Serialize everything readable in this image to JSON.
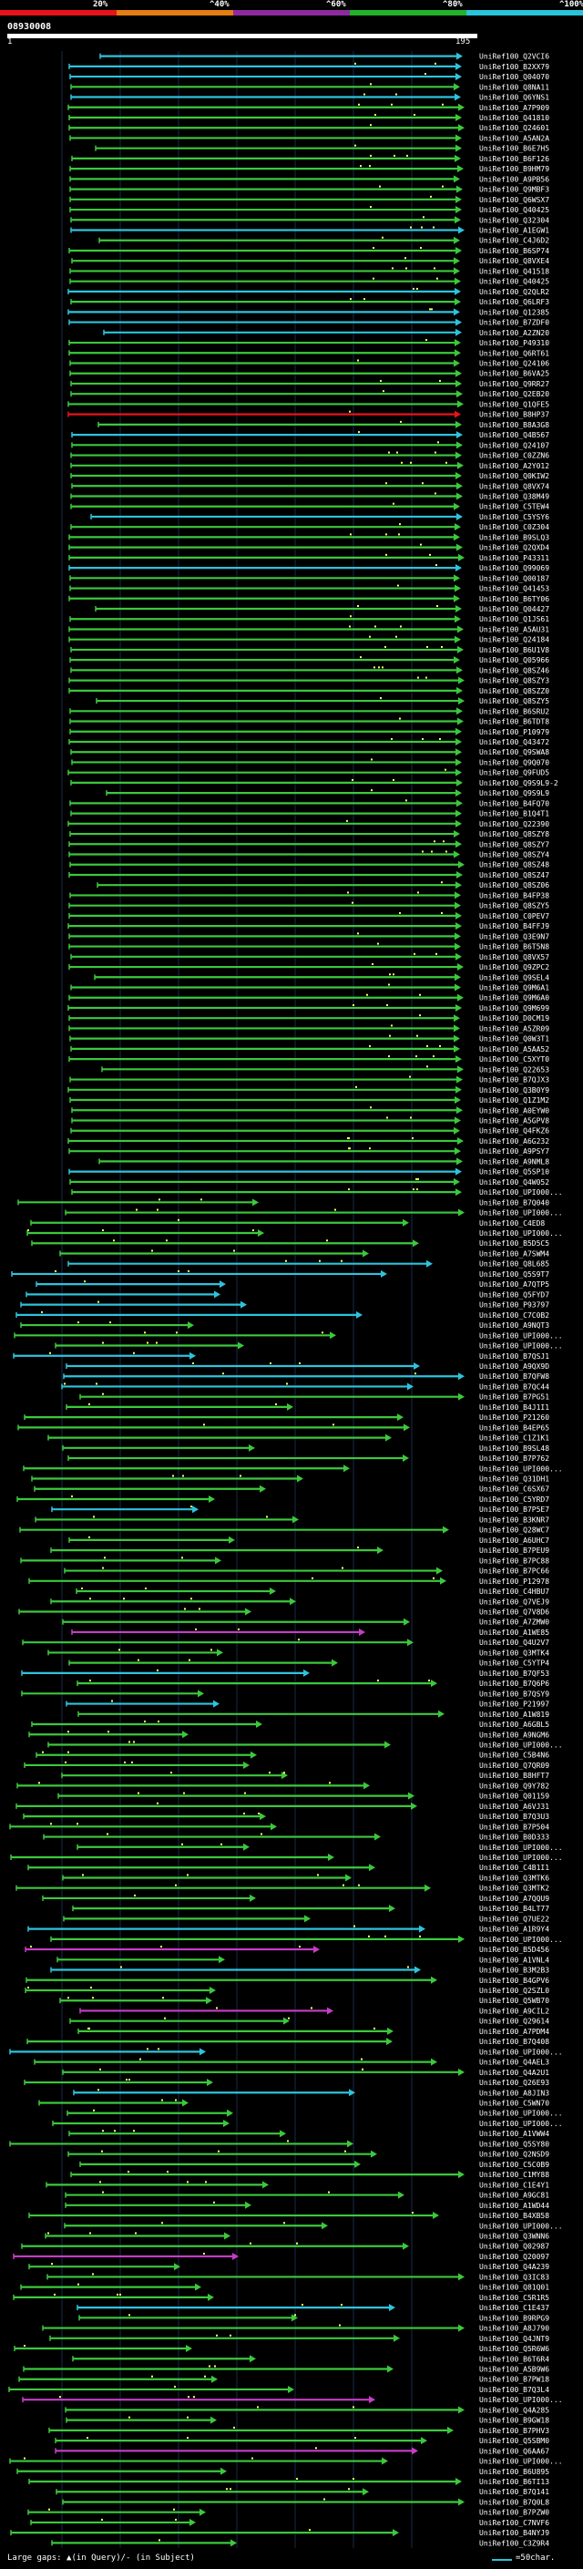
{
  "legend": {
    "labels": [
      "20%",
      "^40%",
      "^60%",
      "^80%",
      "^100%"
    ],
    "colors": [
      "#e8131b",
      "#e67d13",
      "#8e2aa0",
      "#23b02a",
      "#29c4d9"
    ]
  },
  "query": {
    "id": "08930008",
    "start": "1",
    "end": "195"
  },
  "colors": {
    "green": "#3cc83c",
    "cyan": "#2ec3dc",
    "magenta": "#c83cc8",
    "red": "#e8131b",
    "blue": "#3a5cff",
    "white": "#ffffff",
    "dot": "#ffff66"
  },
  "hits": [
    {
      "label": "UniRef100_Q2VCI6",
      "color": "cyan"
    },
    {
      "label": "UniRef100_B2XX79",
      "color": "cyan"
    },
    {
      "label": "UniRef100_Q04070",
      "color": "cyan"
    },
    {
      "label": "UniRef100_Q8NA11",
      "color": "green"
    },
    {
      "label": "UniRef100_Q6YNS1",
      "color": "cyan"
    },
    {
      "label": "UniRef100_A7P909",
      "color": "green"
    },
    {
      "label": "UniRef100_Q41810",
      "color": "green"
    },
    {
      "label": "UniRef100_Q24601",
      "color": "green"
    },
    {
      "label": "UniRef100_A5AN2A",
      "color": "green"
    },
    {
      "label": "UniRef100_B6E7H5",
      "color": "green"
    },
    {
      "label": "UniRef100_B6F126",
      "color": "green"
    },
    {
      "label": "UniRef100_B9HM79",
      "color": "green"
    },
    {
      "label": "UniRef100_A9PB56",
      "color": "green"
    },
    {
      "label": "UniRef100_Q9MBF3",
      "color": "green"
    },
    {
      "label": "UniRef100_Q6WSX7",
      "color": "green"
    },
    {
      "label": "UniRef100_Q40425",
      "color": "green"
    },
    {
      "label": "UniRef100_Q32304",
      "color": "green"
    },
    {
      "label": "UniRef100_A1EGW1",
      "color": "cyan"
    },
    {
      "label": "UniRef100_C4J6D2",
      "color": "green"
    },
    {
      "label": "UniRef100_B6SP74",
      "color": "green"
    },
    {
      "label": "UniRef100_Q8VXE4",
      "color": "green"
    },
    {
      "label": "UniRef100_Q41518",
      "color": "green"
    },
    {
      "label": "UniRef100_Q40425",
      "color": "green"
    },
    {
      "label": "UniRef100_Q2QLR2",
      "color": "cyan"
    },
    {
      "label": "UniRef100_Q6LRF3",
      "color": "green"
    },
    {
      "label": "UniRef100_Q12385",
      "color": "cyan"
    },
    {
      "label": "UniRef100_B7ZDF0",
      "color": "cyan"
    },
    {
      "label": "UniRef100_A2ZN20",
      "color": "cyan"
    },
    {
      "label": "UniRef100_P49310",
      "color": "green"
    },
    {
      "label": "UniRef100_Q6RT61",
      "color": "green"
    },
    {
      "label": "UniRef100_Q24106",
      "color": "green"
    },
    {
      "label": "UniRef100_B6VA25",
      "color": "green"
    },
    {
      "label": "UniRef100_Q9RR27",
      "color": "green"
    },
    {
      "label": "UniRef100_Q2EB20",
      "color": "green"
    },
    {
      "label": "UniRef100_Q1QFE5",
      "color": "green"
    },
    {
      "label": "UniRef100_B8HP37",
      "color": "red"
    },
    {
      "label": "UniRef100_B8A3G8",
      "color": "green"
    },
    {
      "label": "UniRef100_Q4B567",
      "color": "cyan"
    },
    {
      "label": "UniRef100_Q24107",
      "color": "green"
    },
    {
      "label": "UniRef100_C0ZZN6",
      "color": "green"
    },
    {
      "label": "UniRef100_A2Y012",
      "color": "green"
    },
    {
      "label": "UniRef100_Q0KIW2",
      "color": "green"
    },
    {
      "label": "UniRef100_Q8VX74",
      "color": "green"
    },
    {
      "label": "UniRef100_Q38M49",
      "color": "green"
    },
    {
      "label": "UniRef100_C5TEW4",
      "color": "green"
    },
    {
      "label": "UniRef100_C5YSY6",
      "color": "cyan"
    },
    {
      "label": "UniRef100_C0Z304",
      "color": "green"
    },
    {
      "label": "UniRef100_B9SLQ3",
      "color": "green"
    },
    {
      "label": "UniRef100_Q2QXD4",
      "color": "green"
    },
    {
      "label": "UniRef100_P43311",
      "color": "green"
    },
    {
      "label": "UniRef100_Q99069",
      "color": "cyan"
    },
    {
      "label": "UniRef100_Q00187",
      "color": "green"
    },
    {
      "label": "UniRef100_Q41453",
      "color": "green"
    },
    {
      "label": "UniRef100_B6TY06",
      "color": "green"
    },
    {
      "label": "UniRef100_Q04427",
      "color": "green"
    },
    {
      "label": "UniRef100_Q1JS61",
      "color": "green"
    },
    {
      "label": "UniRef100_A5AU31",
      "color": "green"
    },
    {
      "label": "UniRef100_Q24184",
      "color": "green"
    },
    {
      "label": "UniRef100_B6U1V8",
      "color": "green"
    },
    {
      "label": "UniRef100_Q05966",
      "color": "green"
    },
    {
      "label": "UniRef100_Q8SZ46",
      "color": "green"
    },
    {
      "label": "UniRef100_Q8SZY3",
      "color": "green"
    },
    {
      "label": "UniRef100_Q8SZZ0",
      "color": "green"
    },
    {
      "label": "UniRef100_Q8SZY5",
      "color": "green"
    },
    {
      "label": "UniRef100_B6SRU2",
      "color": "green"
    },
    {
      "label": "UniRef100_B6TDT8",
      "color": "green"
    },
    {
      "label": "UniRef100_P10979",
      "color": "green"
    },
    {
      "label": "UniRef100_Q43472",
      "color": "green"
    },
    {
      "label": "UniRef100_Q9SWA8",
      "color": "green"
    },
    {
      "label": "UniRef100_Q9Q070",
      "color": "green"
    },
    {
      "label": "UniRef100_Q9FUD5",
      "color": "green"
    },
    {
      "label": "UniRef100_Q9S9L9-2",
      "color": "green"
    },
    {
      "label": "UniRef100_Q9S9L9",
      "color": "green"
    },
    {
      "label": "UniRef100_B4FQ70",
      "color": "green"
    },
    {
      "label": "UniRef100_B1Q4T1",
      "color": "green"
    },
    {
      "label": "UniRef100_Q22390",
      "color": "green"
    },
    {
      "label": "UniRef100_Q8SZY8",
      "color": "green"
    },
    {
      "label": "UniRef100_Q8SZY7",
      "color": "green"
    },
    {
      "label": "UniRef100_Q8SZY4",
      "color": "green"
    },
    {
      "label": "UniRef100_Q8SZ48",
      "color": "green"
    },
    {
      "label": "UniRef100_Q8SZ47",
      "color": "green"
    },
    {
      "label": "UniRef100_Q8SZ06",
      "color": "green"
    },
    {
      "label": "UniRef100_B4FP38",
      "color": "green"
    },
    {
      "label": "UniRef100_Q8SZY5",
      "color": "green"
    },
    {
      "label": "UniRef100_C0PEV7",
      "color": "green"
    },
    {
      "label": "UniRef100_B4FFJ9",
      "color": "green"
    },
    {
      "label": "UniRef100_Q3E9N7",
      "color": "green"
    },
    {
      "label": "UniRef100_B6T5N8",
      "color": "green"
    },
    {
      "label": "UniRef100_Q8VX57",
      "color": "green"
    },
    {
      "label": "UniRef100_Q9ZPC2",
      "color": "green"
    },
    {
      "label": "UniRef100_Q9SEL4",
      "color": "green"
    },
    {
      "label": "UniRef100_Q9M6A1",
      "color": "green"
    },
    {
      "label": "UniRef100_Q9M6A0",
      "color": "green"
    },
    {
      "label": "UniRef100_Q9M699",
      "color": "green"
    },
    {
      "label": "UniRef100_D0CM19",
      "color": "green"
    },
    {
      "label": "UniRef100_A5ZR09",
      "color": "green"
    },
    {
      "label": "UniRef100_Q0W3T1",
      "color": "green"
    },
    {
      "label": "UniRef100_A5AA52",
      "color": "green"
    },
    {
      "label": "UniRef100_C5XYT0",
      "color": "green"
    },
    {
      "label": "UniRef100_Q22653",
      "color": "green"
    },
    {
      "label": "UniRef100_B7QJX3",
      "color": "green"
    },
    {
      "label": "UniRef100_Q3B0Y9",
      "color": "green"
    },
    {
      "label": "UniRef100_Q1Z1M2",
      "color": "green"
    },
    {
      "label": "UniRef100_A0EYW0",
      "color": "green"
    },
    {
      "label": "UniRef100_A5GPV8",
      "color": "green"
    },
    {
      "label": "UniRef100_Q4FKZ6",
      "color": "green"
    },
    {
      "label": "UniRef100_A6G232",
      "color": "green"
    },
    {
      "label": "UniRef100_A9PSY7",
      "color": "green"
    },
    {
      "label": "UniRef100_A9NML8",
      "color": "green"
    },
    {
      "label": "UniRef100_Q5SP10",
      "color": "cyan"
    },
    {
      "label": "UniRef100_Q4W052",
      "color": "green"
    },
    {
      "label": "UniRef100_UPI000...",
      "color": "green"
    },
    {
      "label": "UniRef100_B7Q040",
      "color": "green"
    },
    {
      "label": "UniRef100_UPI000...",
      "color": "green"
    },
    {
      "label": "UniRef100_C4ED8",
      "color": "green"
    },
    {
      "label": "UniRef100_UPI000...",
      "color": "green"
    },
    {
      "label": "UniRef100_B5D5C5",
      "color": "green"
    },
    {
      "label": "UniRef100_A7SWM4",
      "color": "green"
    },
    {
      "label": "UniRef100_Q8L685",
      "color": "cyan"
    },
    {
      "label": "UniRef100_Q5S9T7",
      "color": "cyan"
    },
    {
      "label": "UniRef100_A7QTP5",
      "color": "cyan"
    },
    {
      "label": "UniRef100_Q5FYD7",
      "color": "cyan"
    },
    {
      "label": "UniRef100_P93797",
      "color": "cyan"
    },
    {
      "label": "UniRef100_C7C0B2",
      "color": "cyan"
    },
    {
      "label": "UniRef100_A9NQT3",
      "color": "green"
    },
    {
      "label": "UniRef100_UPI000...",
      "color": "green"
    },
    {
      "label": "UniRef100_UPI000...",
      "color": "green"
    },
    {
      "label": "UniRef100_B7QSJ1",
      "color": "cyan"
    },
    {
      "label": "UniRef100_A9QX9D",
      "color": "cyan"
    },
    {
      "label": "UniRef100_B7QFW8",
      "color": "cyan"
    },
    {
      "label": "UniRef100_B7QC44",
      "color": "cyan"
    },
    {
      "label": "UniRef100_B7PG51",
      "color": "green"
    },
    {
      "label": "UniRef100_B4J1I1",
      "color": "green"
    },
    {
      "label": "UniRef100_P21260",
      "color": "green"
    },
    {
      "label": "UniRef100_B4EP65",
      "color": "green"
    },
    {
      "label": "UniRef100_C1Z1K1",
      "color": "green"
    },
    {
      "label": "UniRef100_B9SL48",
      "color": "green"
    },
    {
      "label": "UniRef100_B7P762",
      "color": "green"
    },
    {
      "label": "UniRef100_UPI000...",
      "color": "green"
    },
    {
      "label": "UniRef100_Q31DH1",
      "color": "green"
    },
    {
      "label": "UniRef100_C6SX67",
      "color": "green"
    },
    {
      "label": "UniRef100_C5YRD7",
      "color": "green"
    },
    {
      "label": "UniRef100_B7P5E7",
      "color": "cyan"
    },
    {
      "label": "UniRef100_B3KNR7",
      "color": "green"
    },
    {
      "label": "UniRef100_Q28WC7",
      "color": "green"
    },
    {
      "label": "UniRef100_A6UHC7",
      "color": "green"
    },
    {
      "label": "UniRef100_B7PEU9",
      "color": "green"
    },
    {
      "label": "UniRef100_B7PC88",
      "color": "green"
    },
    {
      "label": "UniRef100_B7PC66",
      "color": "green"
    },
    {
      "label": "UniRef100_P12978",
      "color": "green"
    },
    {
      "label": "UniRef100_C4HBU7",
      "color": "green"
    },
    {
      "label": "UniRef100_Q7VEJ9",
      "color": "green"
    },
    {
      "label": "UniRef100_Q7V8D6",
      "color": "green"
    },
    {
      "label": "UniRef100_A7ZMW0",
      "color": "green"
    },
    {
      "label": "UniRef100_A1WE85",
      "color": "magenta"
    },
    {
      "label": "UniRef100_Q4U2V7",
      "color": "green"
    },
    {
      "label": "UniRef100_Q3MTK4",
      "color": "green"
    },
    {
      "label": "UniRef100_C5YTP4",
      "color": "green"
    },
    {
      "label": "UniRef100_B7QF53",
      "color": "cyan"
    },
    {
      "label": "UniRef100_B7Q6P6",
      "color": "green"
    },
    {
      "label": "UniRef100_B7QSY9",
      "color": "green"
    },
    {
      "label": "UniRef100_P21997",
      "color": "cyan"
    },
    {
      "label": "UniRef100_A1W819",
      "color": "green"
    },
    {
      "label": "UniRef100_A6GBL5",
      "color": "green"
    },
    {
      "label": "UniRef100_A9NGM6",
      "color": "green"
    },
    {
      "label": "UniRef100_UPI000...",
      "color": "green"
    },
    {
      "label": "UniRef100_C5B4N6",
      "color": "green"
    },
    {
      "label": "UniRef100_Q7QR09",
      "color": "green"
    },
    {
      "label": "UniRef100_B8HFT7",
      "color": "green"
    },
    {
      "label": "UniRef100_Q9Y782",
      "color": "green"
    },
    {
      "label": "UniRef100_Q01159",
      "color": "green"
    },
    {
      "label": "UniRef100_A6VJ31",
      "color": "green"
    },
    {
      "label": "UniRef100_B7Q3U3",
      "color": "green"
    },
    {
      "label": "UniRef100_B7P504",
      "color": "green"
    },
    {
      "label": "UniRef100_B0D333",
      "color": "green"
    },
    {
      "label": "UniRef100_UPI000...",
      "color": "green"
    },
    {
      "label": "UniRef100_UPI000...",
      "color": "green"
    },
    {
      "label": "UniRef100_C4B1I1",
      "color": "green"
    },
    {
      "label": "UniRef100_Q3MTK6",
      "color": "green"
    },
    {
      "label": "UniRef100_Q3MTK2",
      "color": "green"
    },
    {
      "label": "UniRef100_A7QQU9",
      "color": "green"
    },
    {
      "label": "UniRef100_B4LT77",
      "color": "green"
    },
    {
      "label": "UniRef100_Q7UE22",
      "color": "green"
    },
    {
      "label": "UniRef100_A1R9Y4",
      "color": "cyan"
    },
    {
      "label": "UniRef100_UPI000...",
      "color": "green"
    },
    {
      "label": "UniRef100_B5D456",
      "color": "magenta"
    },
    {
      "label": "UniRef100_A1VNL4",
      "color": "green"
    },
    {
      "label": "UniRef100_B3M2B3",
      "color": "cyan"
    },
    {
      "label": "UniRef100_B4GPV6",
      "color": "green"
    },
    {
      "label": "UniRef100_Q2SZL0",
      "color": "green"
    },
    {
      "label": "UniRef100_Q5WB70",
      "color": "green"
    },
    {
      "label": "UniRef100_A9CIL2",
      "color": "magenta"
    },
    {
      "label": "UniRef100_Q29614",
      "color": "green"
    },
    {
      "label": "UniRef100_A7PDM4",
      "color": "green"
    },
    {
      "label": "UniRef100_B7Q408",
      "color": "green"
    },
    {
      "label": "UniRef100_UPI000...",
      "color": "cyan"
    },
    {
      "label": "UniRef100_Q4AEL3",
      "color": "green"
    },
    {
      "label": "UniRef100_Q4A2U1",
      "color": "green"
    },
    {
      "label": "UniRef100_Q26E93",
      "color": "green"
    },
    {
      "label": "UniRef100_A8JIN3",
      "color": "cyan"
    },
    {
      "label": "UniRef100_C5WN70",
      "color": "green"
    },
    {
      "label": "UniRef100_UPI000...",
      "color": "green"
    },
    {
      "label": "UniRef100_UPI000...",
      "color": "green"
    },
    {
      "label": "UniRef100_A1VWW4",
      "color": "green"
    },
    {
      "label": "UniRef100_Q5SY80",
      "color": "green"
    },
    {
      "label": "UniRef100_Q2NSD9",
      "color": "green"
    },
    {
      "label": "UniRef100_C5C0B9",
      "color": "green"
    },
    {
      "label": "UniRef100_C1MY88",
      "color": "green"
    },
    {
      "label": "UniRef100_C1E4Y1",
      "color": "green"
    },
    {
      "label": "UniRef100_A9GC81",
      "color": "green"
    },
    {
      "label": "UniRef100_A1WD44",
      "color": "green"
    },
    {
      "label": "UniRef100_B4XB58",
      "color": "green"
    },
    {
      "label": "UniRef100_UPI000...",
      "color": "green"
    },
    {
      "label": "UniRef100_Q3WNN6",
      "color": "green"
    },
    {
      "label": "UniRef100_Q02987",
      "color": "green"
    },
    {
      "label": "UniRef100_Q20097",
      "color": "magenta"
    },
    {
      "label": "UniRef100_Q4A239",
      "color": "green"
    },
    {
      "label": "UniRef100_Q3IC83",
      "color": "green"
    },
    {
      "label": "UniRef100_Q81Q01",
      "color": "green"
    },
    {
      "label": "UniRef100_C5R1R5",
      "color": "green"
    },
    {
      "label": "UniRef100_C1E437",
      "color": "cyan"
    },
    {
      "label": "UniRef100_B9RPG9",
      "color": "green"
    },
    {
      "label": "UniRef100_A8J790",
      "color": "green"
    },
    {
      "label": "UniRef100_Q4JNT9",
      "color": "green"
    },
    {
      "label": "UniRef100_Q5R6W6",
      "color": "green"
    },
    {
      "label": "UniRef100_B6T6R4",
      "color": "green"
    },
    {
      "label": "UniRef100_A5B9W6",
      "color": "green"
    },
    {
      "label": "UniRef100_B7PW18",
      "color": "green"
    },
    {
      "label": "UniRef100_B7Q3L4",
      "color": "green"
    },
    {
      "label": "UniRef100_UPI000...",
      "color": "magenta"
    },
    {
      "label": "UniRef100_Q4A285",
      "color": "green"
    },
    {
      "label": "UniRef100_B9GW18",
      "color": "green"
    },
    {
      "label": "UniRef100_B7PHV3",
      "color": "green"
    },
    {
      "label": "UniRef100_Q5SBM0",
      "color": "green"
    },
    {
      "label": "UniRef100_Q6AA67",
      "color": "magenta"
    },
    {
      "label": "UniRef100_UPI000...",
      "color": "green"
    },
    {
      "label": "UniRef100_B6U895",
      "color": "green"
    },
    {
      "label": "UniRef100_B6TI13",
      "color": "green"
    },
    {
      "label": "UniRef100_B7Q141",
      "color": "green"
    },
    {
      "label": "UniRef100_B7Q0L8",
      "color": "green"
    },
    {
      "label": "UniRef100_B7PZW0",
      "color": "green"
    },
    {
      "label": "UniRef100_C7NVF6",
      "color": "green"
    },
    {
      "label": "UniRef100_B4NYJ9",
      "color": "green"
    },
    {
      "label": "UniRef100_C3Z9R4",
      "color": "green"
    }
  ],
  "footer": {
    "gaps_text": "Large gaps: ▲(in Query)/-  (in Subject)",
    "scale_text": "=50char."
  }
}
